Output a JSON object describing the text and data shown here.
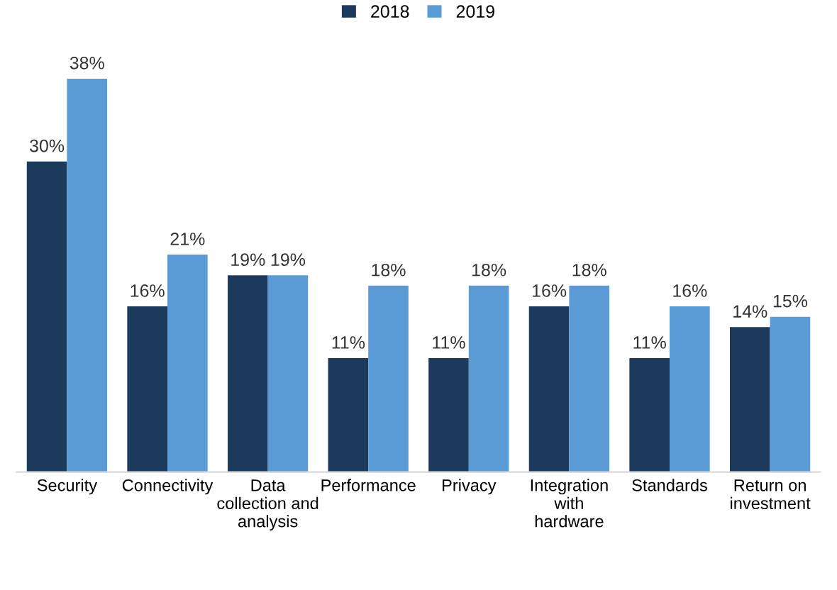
{
  "chart_data": {
    "type": "bar",
    "categories": [
      "Security",
      "Connectivity",
      "Data\ncollection and\nanalysis",
      "Performance",
      "Privacy",
      "Integration\nwith\nhardware",
      "Standards",
      "Return on\ninvestment"
    ],
    "series": [
      {
        "name": "2018",
        "color": "#1b3a5c",
        "values": [
          30,
          16,
          19,
          11,
          11,
          16,
          11,
          14
        ],
        "value_labels": [
          "30%",
          "16%",
          "19%",
          "11%",
          "11%",
          "16%",
          "11%",
          "14%"
        ]
      },
      {
        "name": "2019",
        "color": "#5b9bd5",
        "values": [
          38,
          21,
          19,
          18,
          18,
          18,
          16,
          15
        ],
        "value_labels": [
          "38%",
          "21%",
          "19%",
          "18%",
          "18%",
          "18%",
          "16%",
          "15%"
        ]
      }
    ],
    "legend": "top",
    "grid": false,
    "tick_labels": "x"
  }
}
